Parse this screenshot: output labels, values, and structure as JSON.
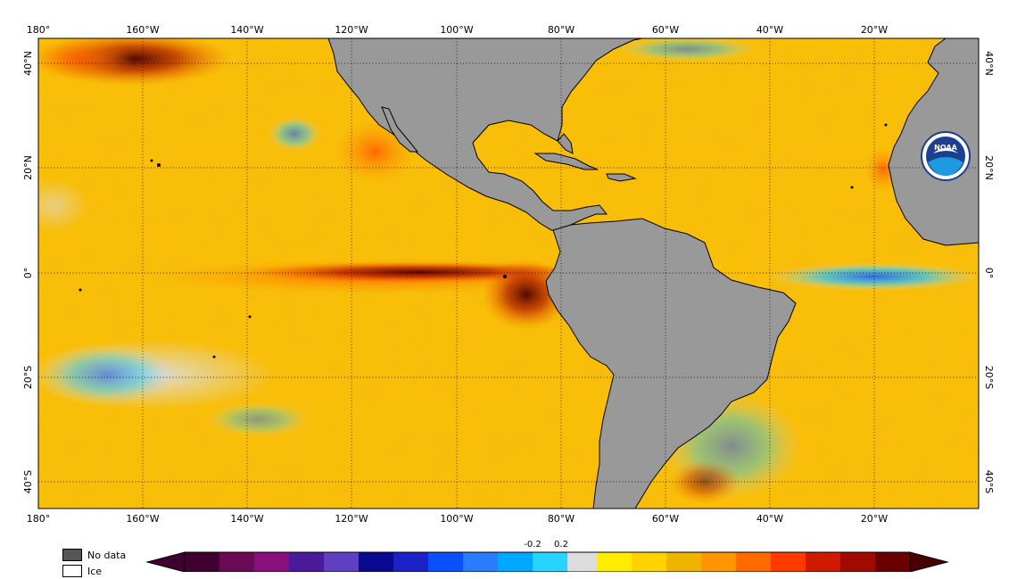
{
  "map": {
    "top_longitude_labels": [
      "180°",
      "160°W",
      "140°W",
      "120°W",
      "100°W",
      "80°W",
      "60°W",
      "40°W",
      "20°W"
    ],
    "bottom_longitude_labels": [
      "180°",
      "160°W",
      "140°W",
      "120°W",
      "100°W",
      "80°W",
      "60°W",
      "40°W",
      "20°W"
    ],
    "left_latitude_labels": [
      "40°N",
      "20°N",
      "0°",
      "20°S",
      "40°S"
    ],
    "right_latitude_labels": [
      "40°N",
      "20°N",
      "0°",
      "20°S",
      "40°S"
    ],
    "land_color": "#999999",
    "ocean_base_color": "#f6b800",
    "logo_text": "NOAA"
  },
  "legend": {
    "items": [
      {
        "label": "No data",
        "color": "#555555"
      },
      {
        "label": "Ice",
        "color": "#ffffff"
      }
    ],
    "colorbar_labels": [
      "-0.2",
      "0.2"
    ],
    "colorbar_colors": [
      "#400030",
      "#6a0a55",
      "#8a1080",
      "#4a1a9a",
      "#6040c0",
      "#0a0a90",
      "#1a22c8",
      "#0a50ff",
      "#2a7cff",
      "#00a8ff",
      "#28d4ff",
      "#dddddd",
      "#dddddd",
      "#ffec00",
      "#ffd200",
      "#f0b400",
      "#ff9500",
      "#ff6a00",
      "#ff3a00",
      "#d01a00",
      "#a00a00",
      "#6a0000"
    ]
  }
}
